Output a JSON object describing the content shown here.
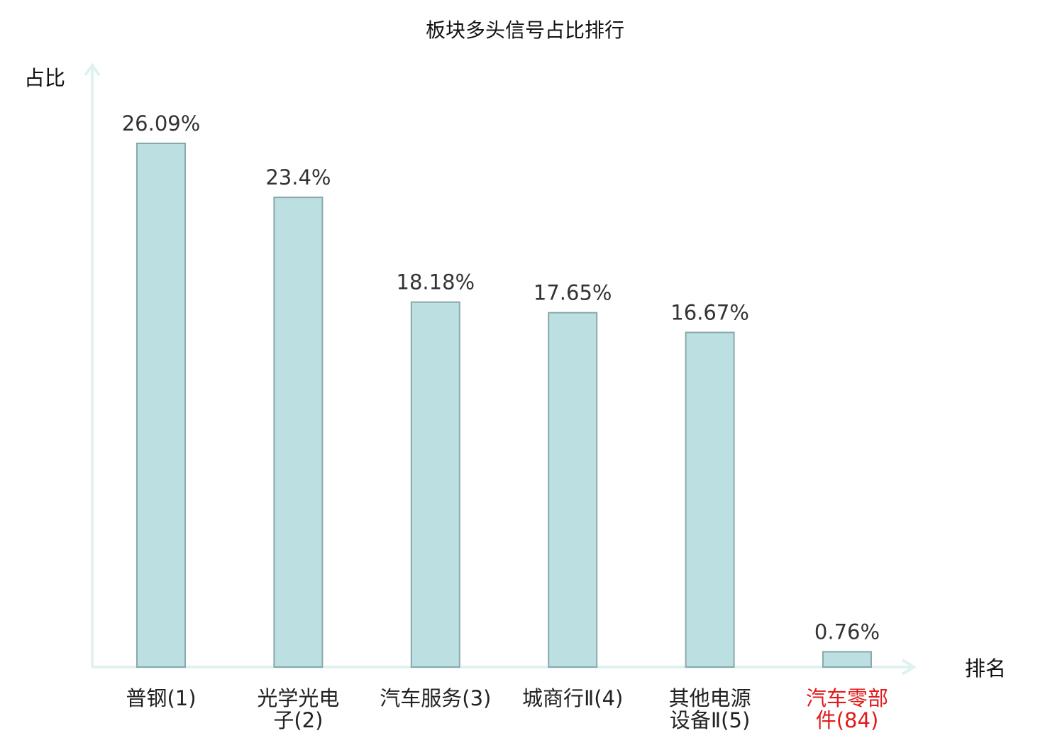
{
  "chart_data": {
    "type": "bar",
    "title": "板块多头信号占比排行",
    "ylabel": "占比",
    "xlabel": "排名",
    "categories": [
      {
        "lines": [
          "普钢",
          "(1)"
        ],
        "inline": true,
        "highlight": false
      },
      {
        "lines": [
          "光学光电",
          "子(2)"
        ],
        "inline": false,
        "highlight": false
      },
      {
        "lines": [
          "汽车服务",
          "(3)"
        ],
        "inline": true,
        "highlight": false
      },
      {
        "lines": [
          "城商行Ⅱ",
          "(4)"
        ],
        "inline": true,
        "highlight": false
      },
      {
        "lines": [
          "其他电源",
          "设备Ⅱ(5)"
        ],
        "inline": false,
        "highlight": false
      },
      {
        "lines": [
          "汽车零部",
          "件(84)"
        ],
        "inline": false,
        "highlight": true
      }
    ],
    "values": [
      26.09,
      23.4,
      18.18,
      17.65,
      16.67,
      0.76
    ],
    "value_labels": [
      "26.09%",
      "23.4%",
      "18.18%",
      "17.65%",
      "16.67%",
      "0.76%"
    ],
    "ylim": [
      0,
      26.09
    ],
    "grid": false,
    "colors": {
      "bar_fill": "#bce0e2",
      "bar_stroke": "#8aa8ab",
      "axis": "#dff2ef",
      "label": "#222222",
      "highlight": "#e11b1b"
    }
  }
}
